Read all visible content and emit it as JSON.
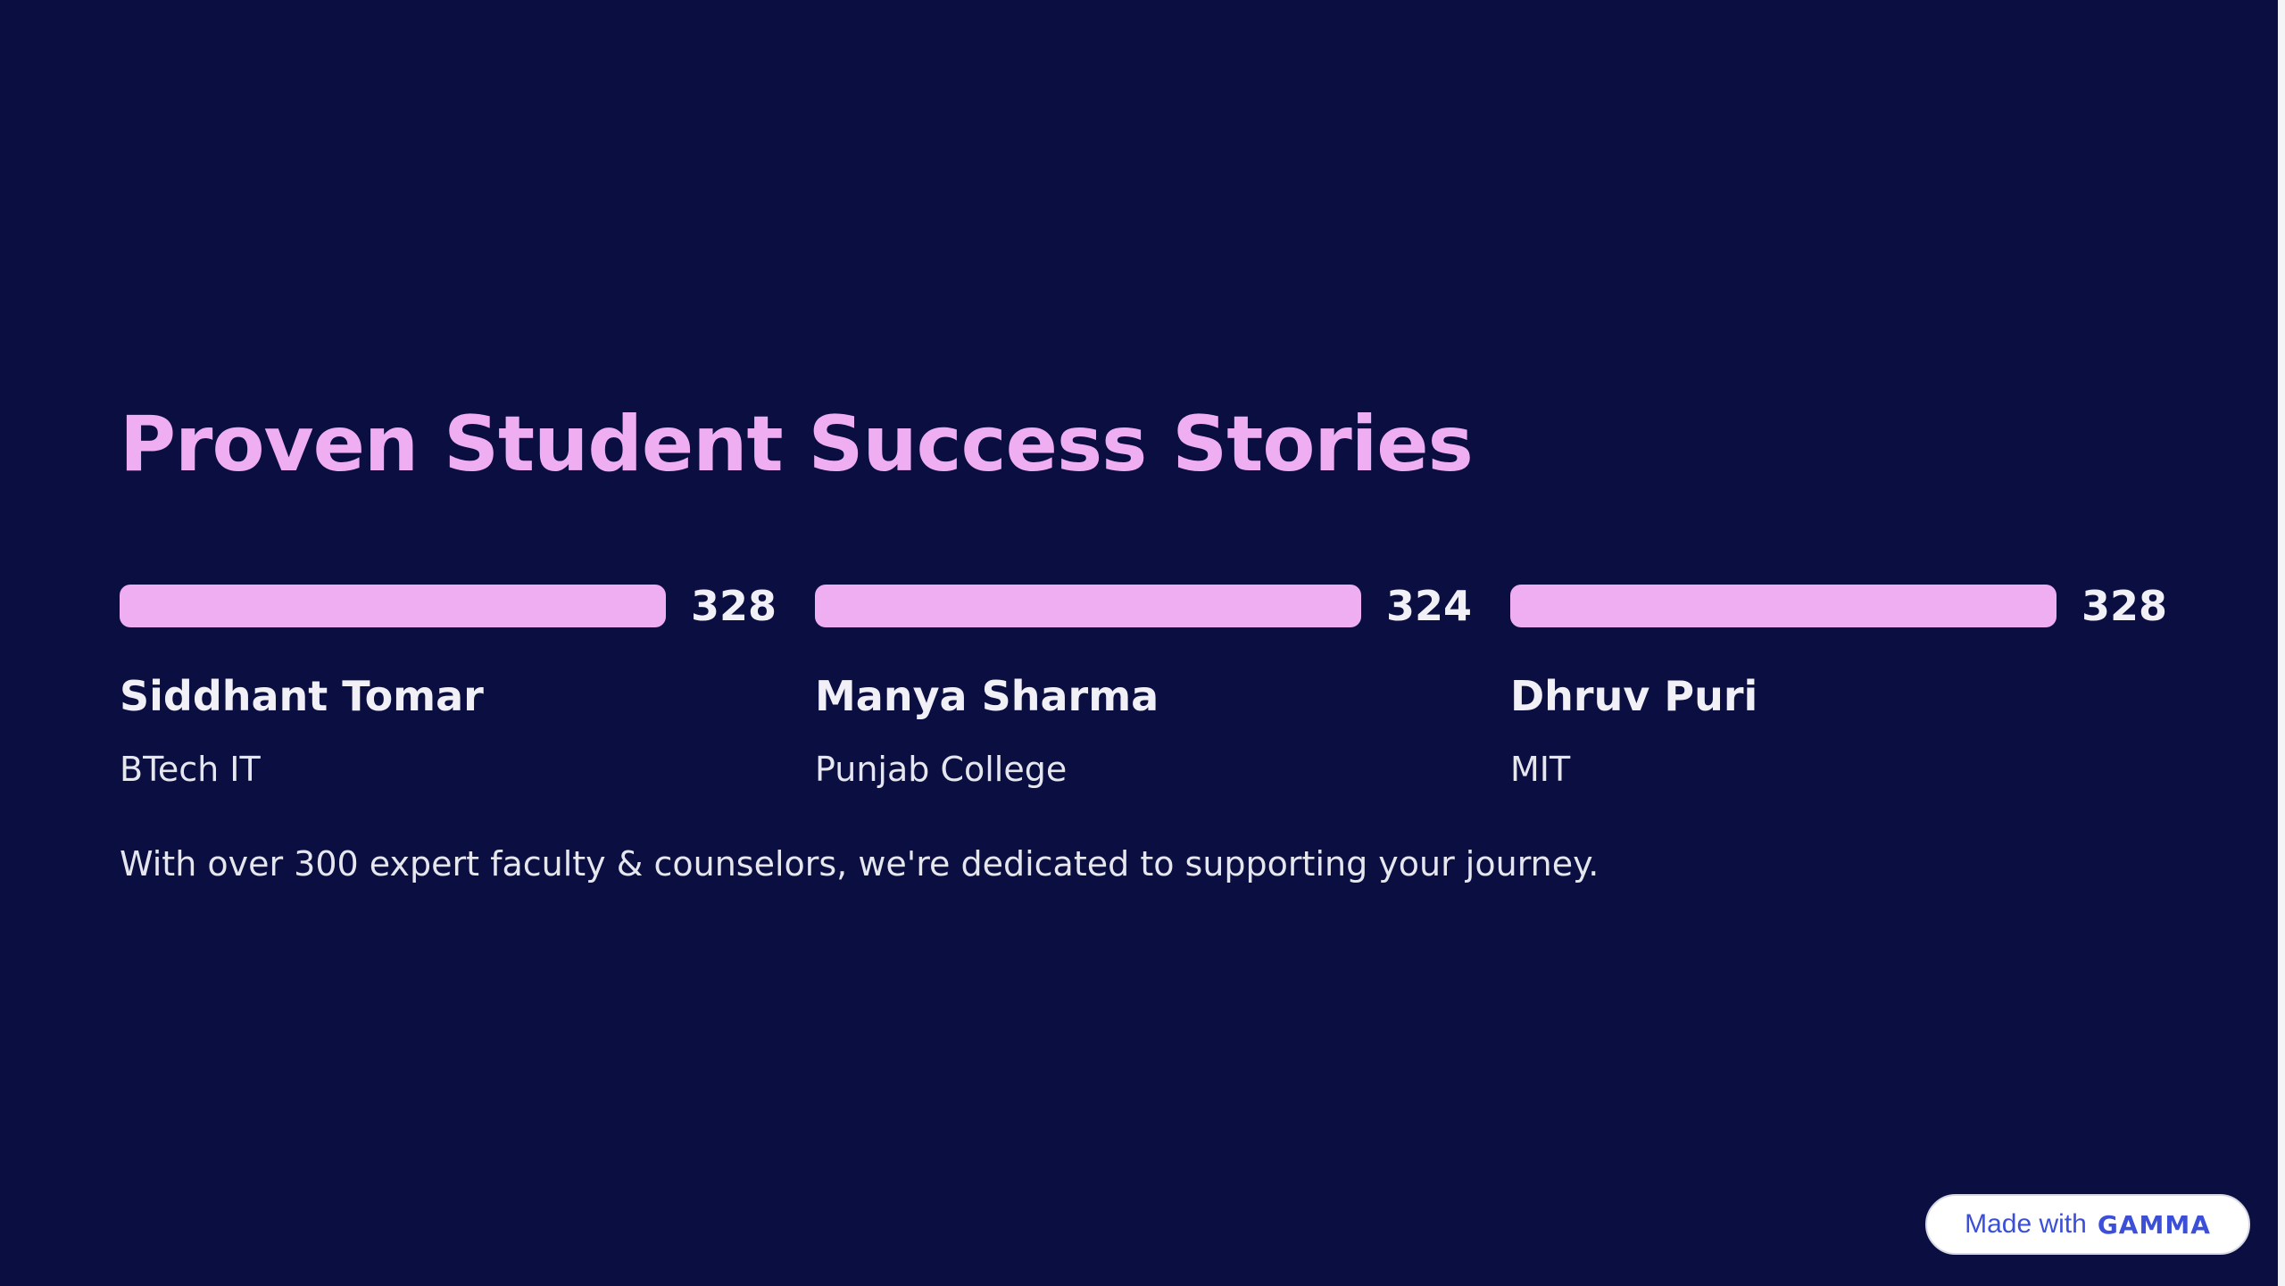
{
  "slide": {
    "title": "Proven Student Success Stories",
    "cards": [
      {
        "value": "328",
        "bar_fraction": 1.0,
        "name": "Siddhant Tomar",
        "school": "BTech IT"
      },
      {
        "value": "324",
        "bar_fraction": 1.0,
        "name": "Manya Sharma",
        "school": "Punjab College"
      },
      {
        "value": "328",
        "bar_fraction": 1.0,
        "name": "Dhruv Puri",
        "school": "MIT"
      }
    ],
    "tagline": "With over 300 expert faculty & counselors, we're dedicated to supporting your journey."
  },
  "badge": {
    "label": "Made with",
    "logo": "GAMMA"
  },
  "colors": {
    "background": "#0a0e40",
    "accent": "#efaef2",
    "text": "#f1f0f6",
    "badge_text": "#3b4fd8"
  }
}
